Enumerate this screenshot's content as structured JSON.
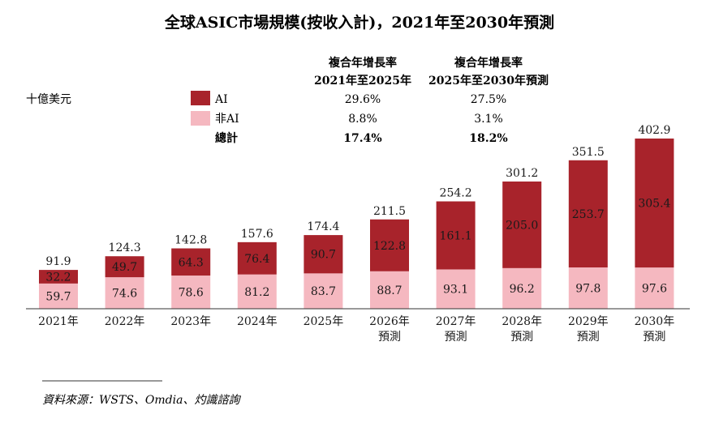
{
  "title": "全球ASIC市場規模(按收入計)，2021年至2030年預測",
  "unit_label": "十億美元",
  "legend": {
    "cagr_header_1": [
      "複合年增長率",
      "2021年至2025年"
    ],
    "cagr_header_2": [
      "複合年增長率",
      "2025年至2030年預測"
    ],
    "rows": [
      {
        "label": "AI",
        "cagr1": "29.6%",
        "cagr2": "27.5%",
        "color": "#a8232b"
      },
      {
        "label": "非AI",
        "cagr1": "8.8%",
        "cagr2": "3.1%",
        "color": "#f5b8c0"
      },
      {
        "label": "總計",
        "cagr1": "17.4%",
        "cagr2": "18.2%"
      }
    ]
  },
  "source": "資料來源：WSTS、Omdia、灼識諮詢",
  "colors": {
    "ai": "#a8232b",
    "non_ai": "#f5b8c0",
    "text": "#1a1a1a",
    "axis": "#333333"
  },
  "chart_data": {
    "type": "bar",
    "stacked": true,
    "title": "全球ASIC市場規模(按收入計)，2021年至2030年預測",
    "ylabel": "十億美元",
    "categories": [
      [
        "2021年"
      ],
      [
        "2022年"
      ],
      [
        "2023年"
      ],
      [
        "2024年"
      ],
      [
        "2025年"
      ],
      [
        "2026年",
        "預測"
      ],
      [
        "2027年",
        "預測"
      ],
      [
        "2028年",
        "預測"
      ],
      [
        "2029年",
        "預測"
      ],
      [
        "2030年",
        "預測"
      ]
    ],
    "series": [
      {
        "name": "非AI",
        "values": [
          59.7,
          74.6,
          78.6,
          81.2,
          83.7,
          88.7,
          93.1,
          96.2,
          97.8,
          97.6
        ]
      },
      {
        "name": "AI",
        "values": [
          32.2,
          49.7,
          64.3,
          76.4,
          90.7,
          122.8,
          161.1,
          205.0,
          253.7,
          305.4
        ]
      }
    ],
    "totals": [
      91.9,
      124.3,
      142.8,
      157.6,
      174.4,
      211.5,
      254.2,
      301.2,
      351.5,
      402.9
    ],
    "ylim": [
      0,
      402.9
    ]
  }
}
